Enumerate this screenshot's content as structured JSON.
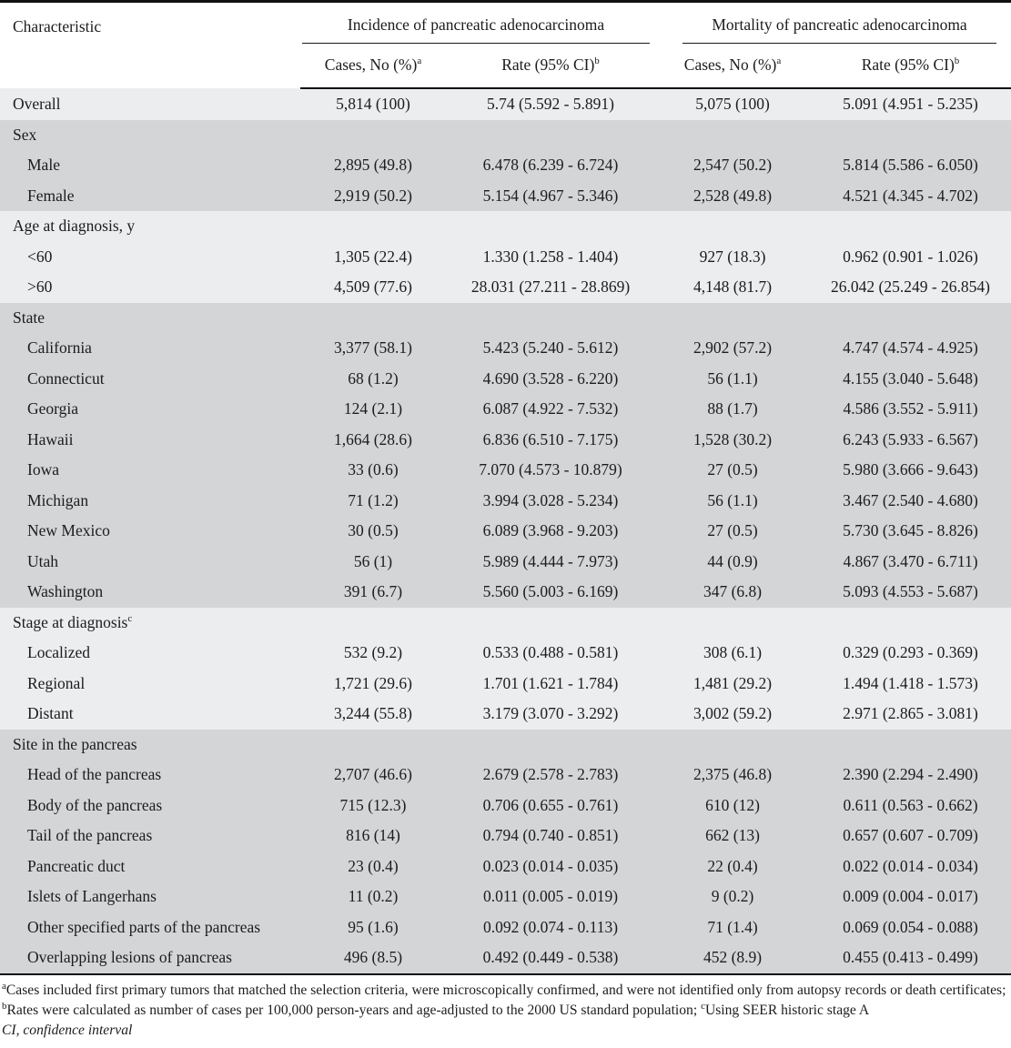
{
  "table": {
    "characteristic_header": "Characteristic",
    "groups": [
      {
        "label": "Incidence of pancreatic adenocarcinoma"
      },
      {
        "label": "Mortality of pancreatic adenocarcinoma"
      }
    ],
    "subheaders": {
      "cases_label": "Cases, No (%)",
      "cases_sup": "a",
      "rate_label": "Rate (95% CI)",
      "rate_sup": "b"
    },
    "rows": [
      {
        "label": "Overall",
        "sup": "",
        "header": false,
        "indent": false,
        "shade": "light",
        "cells": [
          "5,814 (100)",
          "5.74 (5.592 - 5.891)",
          "5,075 (100)",
          "5.091 (4.951 - 5.235)"
        ]
      },
      {
        "label": "Sex",
        "sup": "",
        "header": true,
        "indent": false,
        "shade": "dark",
        "cells": [
          "",
          "",
          "",
          ""
        ]
      },
      {
        "label": "Male",
        "sup": "",
        "header": false,
        "indent": true,
        "shade": "dark",
        "cells": [
          "2,895 (49.8)",
          "6.478 (6.239 - 6.724)",
          "2,547 (50.2)",
          "5.814 (5.586 - 6.050)"
        ]
      },
      {
        "label": "Female",
        "sup": "",
        "header": false,
        "indent": true,
        "shade": "dark",
        "cells": [
          "2,919 (50.2)",
          "5.154 (4.967 - 5.346)",
          "2,528 (49.8)",
          "4.521 (4.345 - 4.702)"
        ]
      },
      {
        "label": "Age at diagnosis, y",
        "sup": "",
        "header": true,
        "indent": false,
        "shade": "light",
        "cells": [
          "",
          "",
          "",
          ""
        ]
      },
      {
        "label": "<60",
        "sup": "",
        "header": false,
        "indent": true,
        "shade": "light",
        "cells": [
          "1,305 (22.4)",
          "1.330 (1.258 - 1.404)",
          "927 (18.3)",
          "0.962 (0.901 - 1.026)"
        ]
      },
      {
        "label": ">60",
        "sup": "",
        "header": false,
        "indent": true,
        "shade": "light",
        "cells": [
          "4,509 (77.6)",
          "28.031 (27.211 - 28.869)",
          "4,148 (81.7)",
          "26.042 (25.249 - 26.854)"
        ]
      },
      {
        "label": "State",
        "sup": "",
        "header": true,
        "indent": false,
        "shade": "dark",
        "cells": [
          "",
          "",
          "",
          ""
        ]
      },
      {
        "label": "California",
        "sup": "",
        "header": false,
        "indent": true,
        "shade": "dark",
        "cells": [
          "3,377 (58.1)",
          "5.423 (5.240 - 5.612)",
          "2,902 (57.2)",
          "4.747 (4.574 - 4.925)"
        ]
      },
      {
        "label": "Connecticut",
        "sup": "",
        "header": false,
        "indent": true,
        "shade": "dark",
        "cells": [
          "68 (1.2)",
          "4.690 (3.528 - 6.220)",
          "56 (1.1)",
          "4.155 (3.040 - 5.648)"
        ]
      },
      {
        "label": "Georgia",
        "sup": "",
        "header": false,
        "indent": true,
        "shade": "dark",
        "cells": [
          "124 (2.1)",
          "6.087 (4.922 - 7.532)",
          "88 (1.7)",
          "4.586 (3.552 - 5.911)"
        ]
      },
      {
        "label": "Hawaii",
        "sup": "",
        "header": false,
        "indent": true,
        "shade": "dark",
        "cells": [
          "1,664 (28.6)",
          "6.836 (6.510 - 7.175)",
          "1,528 (30.2)",
          "6.243 (5.933 - 6.567)"
        ]
      },
      {
        "label": "Iowa",
        "sup": "",
        "header": false,
        "indent": true,
        "shade": "dark",
        "cells": [
          "33 (0.6)",
          "7.070 (4.573 - 10.879)",
          "27 (0.5)",
          "5.980 (3.666 - 9.643)"
        ]
      },
      {
        "label": "Michigan",
        "sup": "",
        "header": false,
        "indent": true,
        "shade": "dark",
        "cells": [
          "71 (1.2)",
          "3.994 (3.028 - 5.234)",
          "56 (1.1)",
          "3.467 (2.540 - 4.680)"
        ]
      },
      {
        "label": "New Mexico",
        "sup": "",
        "header": false,
        "indent": true,
        "shade": "dark",
        "cells": [
          "30 (0.5)",
          "6.089 (3.968 - 9.203)",
          "27 (0.5)",
          "5.730 (3.645 - 8.826)"
        ]
      },
      {
        "label": "Utah",
        "sup": "",
        "header": false,
        "indent": true,
        "shade": "dark",
        "cells": [
          "56 (1)",
          "5.989 (4.444 - 7.973)",
          "44 (0.9)",
          "4.867 (3.470 - 6.711)"
        ]
      },
      {
        "label": "Washington",
        "sup": "",
        "header": false,
        "indent": true,
        "shade": "dark",
        "cells": [
          "391 (6.7)",
          "5.560 (5.003 - 6.169)",
          "347 (6.8)",
          "5.093 (4.553 - 5.687)"
        ]
      },
      {
        "label": "Stage at diagnosis",
        "sup": "c",
        "header": true,
        "indent": false,
        "shade": "light",
        "cells": [
          "",
          "",
          "",
          ""
        ]
      },
      {
        "label": "Localized",
        "sup": "",
        "header": false,
        "indent": true,
        "shade": "light",
        "cells": [
          "532 (9.2)",
          "0.533 (0.488 - 0.581)",
          "308 (6.1)",
          "0.329 (0.293 - 0.369)"
        ]
      },
      {
        "label": "Regional",
        "sup": "",
        "header": false,
        "indent": true,
        "shade": "light",
        "cells": [
          "1,721 (29.6)",
          "1.701 (1.621 - 1.784)",
          "1,481 (29.2)",
          "1.494 (1.418 - 1.573)"
        ]
      },
      {
        "label": "Distant",
        "sup": "",
        "header": false,
        "indent": true,
        "shade": "light",
        "cells": [
          "3,244 (55.8)",
          "3.179 (3.070 - 3.292)",
          "3,002 (59.2)",
          "2.971 (2.865 - 3.081)"
        ]
      },
      {
        "label": "Site in the pancreas",
        "sup": "",
        "header": true,
        "indent": false,
        "shade": "dark",
        "cells": [
          "",
          "",
          "",
          ""
        ]
      },
      {
        "label": "Head of the pancreas",
        "sup": "",
        "header": false,
        "indent": true,
        "shade": "dark",
        "cells": [
          "2,707 (46.6)",
          "2.679 (2.578 - 2.783)",
          "2,375 (46.8)",
          "2.390 (2.294 - 2.490)"
        ]
      },
      {
        "label": "Body of the pancreas",
        "sup": "",
        "header": false,
        "indent": true,
        "shade": "dark",
        "cells": [
          "715 (12.3)",
          "0.706 (0.655 - 0.761)",
          "610 (12)",
          "0.611 (0.563 - 0.662)"
        ]
      },
      {
        "label": "Tail of the pancreas",
        "sup": "",
        "header": false,
        "indent": true,
        "shade": "dark",
        "cells": [
          "816 (14)",
          "0.794 (0.740 - 0.851)",
          "662 (13)",
          "0.657 (0.607 - 0.709)"
        ]
      },
      {
        "label": "Pancreatic duct",
        "sup": "",
        "header": false,
        "indent": true,
        "shade": "dark",
        "cells": [
          "23 (0.4)",
          "0.023 (0.014 - 0.035)",
          "22 (0.4)",
          "0.022 (0.014 - 0.034)"
        ]
      },
      {
        "label": "Islets of Langerhans",
        "sup": "",
        "header": false,
        "indent": true,
        "shade": "dark",
        "cells": [
          "11 (0.2)",
          "0.011 (0.005 - 0.019)",
          "9 (0.2)",
          "0.009 (0.004 - 0.017)"
        ]
      },
      {
        "label": "Other specified parts of the pancreas",
        "sup": "",
        "header": false,
        "indent": true,
        "shade": "dark",
        "cells": [
          "95 (1.6)",
          "0.092 (0.074 - 0.113)",
          "71 (1.4)",
          "0.069 (0.054 - 0.088)"
        ]
      },
      {
        "label": "Overlapping lesions of pancreas",
        "sup": "",
        "header": false,
        "indent": true,
        "shade": "dark",
        "cells": [
          "496 (8.5)",
          "0.492 (0.449 - 0.538)",
          "452 (8.9)",
          "0.455 (0.413 - 0.499)"
        ]
      }
    ]
  },
  "colors": {
    "row_light": "#ebedef",
    "row_dark": "#d4d5d7",
    "rule": "#101010"
  },
  "footnotes": {
    "parts": [
      {
        "sup": "a",
        "text": "Cases included first primary tumors that matched the selection criteria, were microscopically confirmed, and were not identified only from autopsy records or death certificates; "
      },
      {
        "sup": "b",
        "text": "Rates were calculated as number of cases per 100,000 person-years and age-adjusted to the 2000 US standard population; "
      },
      {
        "sup": "c",
        "text": "Using SEER historic stage A"
      }
    ],
    "abbreviation_line": "CI, confidence interval"
  }
}
